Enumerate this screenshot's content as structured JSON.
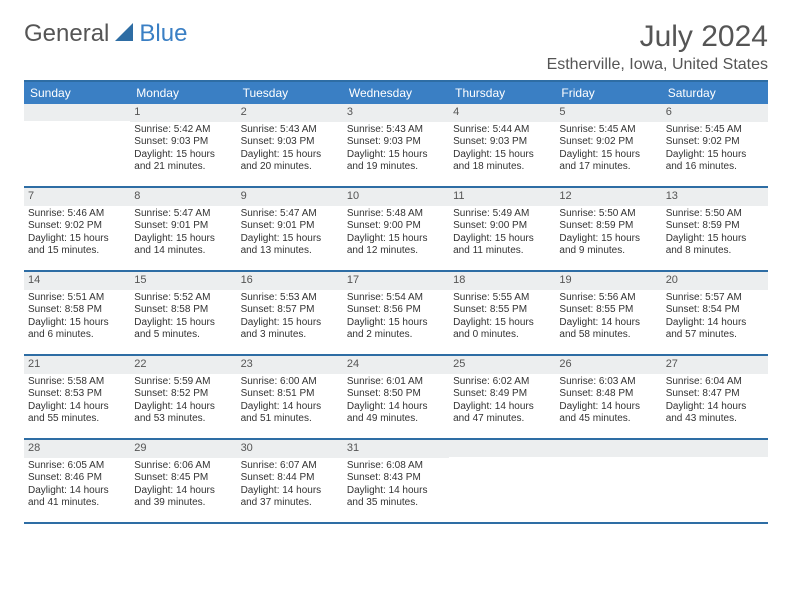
{
  "logo": {
    "word1": "General",
    "word2": "Blue"
  },
  "title": "July 2024",
  "location": "Estherville, Iowa, United States",
  "colors": {
    "header_bg": "#3a7fc4",
    "border": "#2e6da4",
    "daynum_bg": "#eceeef",
    "text": "#333333",
    "subtext": "#555555"
  },
  "day_names": [
    "Sunday",
    "Monday",
    "Tuesday",
    "Wednesday",
    "Thursday",
    "Friday",
    "Saturday"
  ],
  "weeks": [
    [
      {
        "n": "",
        "sunrise": "",
        "sunset": "",
        "day1": "",
        "day2": ""
      },
      {
        "n": "1",
        "sunrise": "Sunrise: 5:42 AM",
        "sunset": "Sunset: 9:03 PM",
        "day1": "Daylight: 15 hours",
        "day2": "and 21 minutes."
      },
      {
        "n": "2",
        "sunrise": "Sunrise: 5:43 AM",
        "sunset": "Sunset: 9:03 PM",
        "day1": "Daylight: 15 hours",
        "day2": "and 20 minutes."
      },
      {
        "n": "3",
        "sunrise": "Sunrise: 5:43 AM",
        "sunset": "Sunset: 9:03 PM",
        "day1": "Daylight: 15 hours",
        "day2": "and 19 minutes."
      },
      {
        "n": "4",
        "sunrise": "Sunrise: 5:44 AM",
        "sunset": "Sunset: 9:03 PM",
        "day1": "Daylight: 15 hours",
        "day2": "and 18 minutes."
      },
      {
        "n": "5",
        "sunrise": "Sunrise: 5:45 AM",
        "sunset": "Sunset: 9:02 PM",
        "day1": "Daylight: 15 hours",
        "day2": "and 17 minutes."
      },
      {
        "n": "6",
        "sunrise": "Sunrise: 5:45 AM",
        "sunset": "Sunset: 9:02 PM",
        "day1": "Daylight: 15 hours",
        "day2": "and 16 minutes."
      }
    ],
    [
      {
        "n": "7",
        "sunrise": "Sunrise: 5:46 AM",
        "sunset": "Sunset: 9:02 PM",
        "day1": "Daylight: 15 hours",
        "day2": "and 15 minutes."
      },
      {
        "n": "8",
        "sunrise": "Sunrise: 5:47 AM",
        "sunset": "Sunset: 9:01 PM",
        "day1": "Daylight: 15 hours",
        "day2": "and 14 minutes."
      },
      {
        "n": "9",
        "sunrise": "Sunrise: 5:47 AM",
        "sunset": "Sunset: 9:01 PM",
        "day1": "Daylight: 15 hours",
        "day2": "and 13 minutes."
      },
      {
        "n": "10",
        "sunrise": "Sunrise: 5:48 AM",
        "sunset": "Sunset: 9:00 PM",
        "day1": "Daylight: 15 hours",
        "day2": "and 12 minutes."
      },
      {
        "n": "11",
        "sunrise": "Sunrise: 5:49 AM",
        "sunset": "Sunset: 9:00 PM",
        "day1": "Daylight: 15 hours",
        "day2": "and 11 minutes."
      },
      {
        "n": "12",
        "sunrise": "Sunrise: 5:50 AM",
        "sunset": "Sunset: 8:59 PM",
        "day1": "Daylight: 15 hours",
        "day2": "and 9 minutes."
      },
      {
        "n": "13",
        "sunrise": "Sunrise: 5:50 AM",
        "sunset": "Sunset: 8:59 PM",
        "day1": "Daylight: 15 hours",
        "day2": "and 8 minutes."
      }
    ],
    [
      {
        "n": "14",
        "sunrise": "Sunrise: 5:51 AM",
        "sunset": "Sunset: 8:58 PM",
        "day1": "Daylight: 15 hours",
        "day2": "and 6 minutes."
      },
      {
        "n": "15",
        "sunrise": "Sunrise: 5:52 AM",
        "sunset": "Sunset: 8:58 PM",
        "day1": "Daylight: 15 hours",
        "day2": "and 5 minutes."
      },
      {
        "n": "16",
        "sunrise": "Sunrise: 5:53 AM",
        "sunset": "Sunset: 8:57 PM",
        "day1": "Daylight: 15 hours",
        "day2": "and 3 minutes."
      },
      {
        "n": "17",
        "sunrise": "Sunrise: 5:54 AM",
        "sunset": "Sunset: 8:56 PM",
        "day1": "Daylight: 15 hours",
        "day2": "and 2 minutes."
      },
      {
        "n": "18",
        "sunrise": "Sunrise: 5:55 AM",
        "sunset": "Sunset: 8:55 PM",
        "day1": "Daylight: 15 hours",
        "day2": "and 0 minutes."
      },
      {
        "n": "19",
        "sunrise": "Sunrise: 5:56 AM",
        "sunset": "Sunset: 8:55 PM",
        "day1": "Daylight: 14 hours",
        "day2": "and 58 minutes."
      },
      {
        "n": "20",
        "sunrise": "Sunrise: 5:57 AM",
        "sunset": "Sunset: 8:54 PM",
        "day1": "Daylight: 14 hours",
        "day2": "and 57 minutes."
      }
    ],
    [
      {
        "n": "21",
        "sunrise": "Sunrise: 5:58 AM",
        "sunset": "Sunset: 8:53 PM",
        "day1": "Daylight: 14 hours",
        "day2": "and 55 minutes."
      },
      {
        "n": "22",
        "sunrise": "Sunrise: 5:59 AM",
        "sunset": "Sunset: 8:52 PM",
        "day1": "Daylight: 14 hours",
        "day2": "and 53 minutes."
      },
      {
        "n": "23",
        "sunrise": "Sunrise: 6:00 AM",
        "sunset": "Sunset: 8:51 PM",
        "day1": "Daylight: 14 hours",
        "day2": "and 51 minutes."
      },
      {
        "n": "24",
        "sunrise": "Sunrise: 6:01 AM",
        "sunset": "Sunset: 8:50 PM",
        "day1": "Daylight: 14 hours",
        "day2": "and 49 minutes."
      },
      {
        "n": "25",
        "sunrise": "Sunrise: 6:02 AM",
        "sunset": "Sunset: 8:49 PM",
        "day1": "Daylight: 14 hours",
        "day2": "and 47 minutes."
      },
      {
        "n": "26",
        "sunrise": "Sunrise: 6:03 AM",
        "sunset": "Sunset: 8:48 PM",
        "day1": "Daylight: 14 hours",
        "day2": "and 45 minutes."
      },
      {
        "n": "27",
        "sunrise": "Sunrise: 6:04 AM",
        "sunset": "Sunset: 8:47 PM",
        "day1": "Daylight: 14 hours",
        "day2": "and 43 minutes."
      }
    ],
    [
      {
        "n": "28",
        "sunrise": "Sunrise: 6:05 AM",
        "sunset": "Sunset: 8:46 PM",
        "day1": "Daylight: 14 hours",
        "day2": "and 41 minutes."
      },
      {
        "n": "29",
        "sunrise": "Sunrise: 6:06 AM",
        "sunset": "Sunset: 8:45 PM",
        "day1": "Daylight: 14 hours",
        "day2": "and 39 minutes."
      },
      {
        "n": "30",
        "sunrise": "Sunrise: 6:07 AM",
        "sunset": "Sunset: 8:44 PM",
        "day1": "Daylight: 14 hours",
        "day2": "and 37 minutes."
      },
      {
        "n": "31",
        "sunrise": "Sunrise: 6:08 AM",
        "sunset": "Sunset: 8:43 PM",
        "day1": "Daylight: 14 hours",
        "day2": "and 35 minutes."
      },
      {
        "n": "",
        "sunrise": "",
        "sunset": "",
        "day1": "",
        "day2": ""
      },
      {
        "n": "",
        "sunrise": "",
        "sunset": "",
        "day1": "",
        "day2": ""
      },
      {
        "n": "",
        "sunrise": "",
        "sunset": "",
        "day1": "",
        "day2": ""
      }
    ]
  ]
}
